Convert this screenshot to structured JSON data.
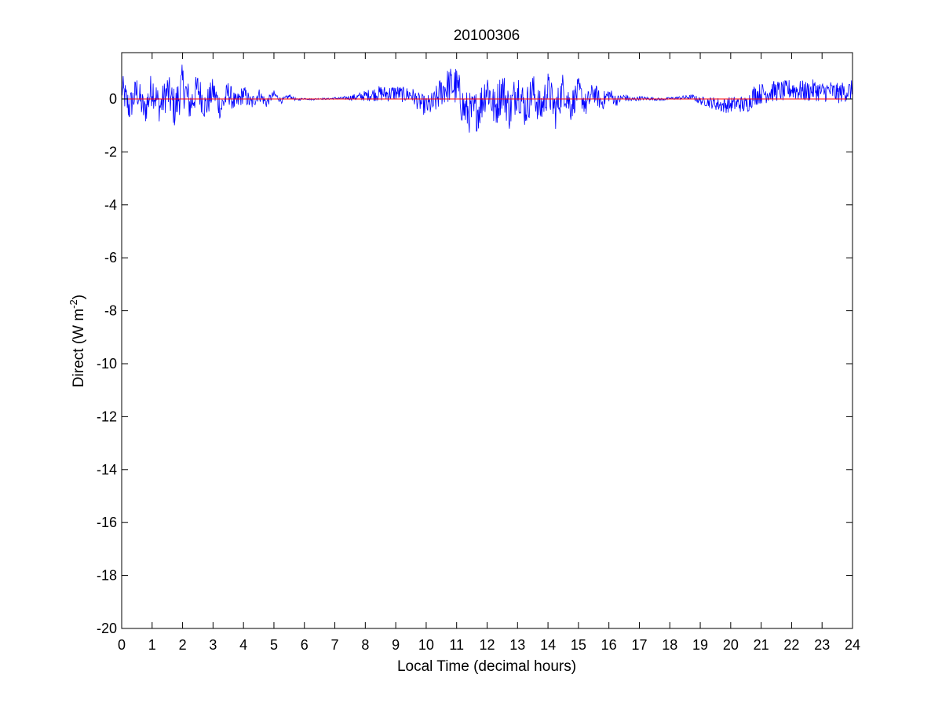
{
  "chart_data": {
    "type": "line",
    "title": "20100306",
    "xlabel": "Local Time (decimal hours)",
    "ylabel": "Direct (W m",
    "ylabel_superscript": "-2",
    "ylabel_suffix": ")",
    "xlim": [
      0,
      24
    ],
    "ylim": [
      -20,
      1.75
    ],
    "xticks": [
      0,
      1,
      2,
      3,
      4,
      5,
      6,
      7,
      8,
      9,
      10,
      11,
      12,
      13,
      14,
      15,
      16,
      17,
      18,
      19,
      20,
      21,
      22,
      23,
      24
    ],
    "yticks": [
      0,
      -2,
      -4,
      -6,
      -8,
      -10,
      -12,
      -14,
      -16,
      -18,
      -20
    ],
    "grid": false,
    "legend": "none",
    "series": [
      {
        "color": "#0000ff",
        "x": [
          0,
          0.25,
          0.5,
          0.75,
          1,
          1.25,
          1.5,
          1.75,
          2,
          2.25,
          2.5,
          2.75,
          3,
          3.25,
          3.5,
          3.75,
          4,
          4.25,
          4.5,
          4.75,
          5,
          5.25,
          5.5,
          5.75,
          6,
          6.25,
          6.5,
          6.75,
          7,
          7.25,
          7.5,
          7.75,
          8,
          8.25,
          8.5,
          8.75,
          9,
          9.25,
          9.5,
          9.75,
          10,
          10.25,
          10.5,
          10.75,
          11,
          11.25,
          11.5,
          11.75,
          12,
          12.25,
          12.5,
          12.75,
          13,
          13.25,
          13.5,
          13.75,
          14,
          14.25,
          14.5,
          14.75,
          15,
          15.25,
          15.5,
          15.75,
          16,
          16.25,
          16.5,
          16.75,
          17,
          17.25,
          17.5,
          17.75,
          18,
          18.25,
          18.5,
          18.75,
          19,
          19.25,
          19.5,
          19.75,
          20,
          20.25,
          20.5,
          20.75,
          21,
          21.25,
          21.5,
          21.75,
          22,
          22.25,
          22.5,
          22.75,
          23,
          23.25,
          23.5,
          23.75,
          24
        ],
        "y": [
          1.2,
          -1.0,
          0.9,
          -1.4,
          1.3,
          -0.9,
          0.8,
          -1.1,
          1.6,
          -0.7,
          1.2,
          -0.9,
          0.9,
          -1.0,
          0.7,
          -0.6,
          0.6,
          -0.5,
          0.5,
          -0.4,
          0.5,
          -0.2,
          0.3,
          -0.1,
          0.05,
          -0.05,
          0.04,
          0.0,
          0.08,
          0.05,
          0.15,
          0.2,
          0.35,
          0.5,
          0.6,
          0.55,
          0.7,
          0.45,
          0.5,
          -0.3,
          -0.8,
          -0.5,
          0.9,
          1.5,
          1.3,
          -1.2,
          -1.6,
          -1.0,
          1.4,
          -1.2,
          1.1,
          -1.3,
          1.3,
          -1.1,
          0.9,
          -1.2,
          1.0,
          -1.3,
          1.2,
          -0.8,
          0.9,
          -0.7,
          0.8,
          -0.4,
          0.5,
          -0.2,
          0.2,
          -0.1,
          0.1,
          0.05,
          0.0,
          -0.05,
          0.05,
          0.1,
          0.15,
          0.2,
          -0.2,
          -0.3,
          -0.5,
          -0.7,
          -0.6,
          -0.5,
          -0.7,
          0.4,
          0.6,
          0.7,
          0.9,
          0.8,
          1.1,
          0.9,
          0.8,
          1.0,
          0.7,
          0.9,
          0.6,
          0.8,
          0.9
        ],
        "noise": [
          0.6,
          0.6,
          0.6,
          0.6,
          0.7,
          0.6,
          0.7,
          0.8,
          0.8,
          0.7,
          0.6,
          0.6,
          0.5,
          0.5,
          0.45,
          0.4,
          0.35,
          0.3,
          0.25,
          0.2,
          0.15,
          0.1,
          0.08,
          0.05,
          0.03,
          0.03,
          0.03,
          0.03,
          0.04,
          0.06,
          0.1,
          0.15,
          0.2,
          0.25,
          0.3,
          0.3,
          0.3,
          0.3,
          0.3,
          0.35,
          0.4,
          0.5,
          0.6,
          0.7,
          0.8,
          0.8,
          0.8,
          0.8,
          0.8,
          0.8,
          0.8,
          0.8,
          0.8,
          0.75,
          0.7,
          0.7,
          0.7,
          0.7,
          0.65,
          0.6,
          0.5,
          0.45,
          0.4,
          0.35,
          0.3,
          0.2,
          0.15,
          0.1,
          0.08,
          0.06,
          0.05,
          0.05,
          0.05,
          0.06,
          0.08,
          0.1,
          0.15,
          0.2,
          0.25,
          0.3,
          0.3,
          0.3,
          0.35,
          0.4,
          0.4,
          0.4,
          0.4,
          0.4,
          0.4,
          0.4,
          0.4,
          0.4,
          0.4,
          0.4,
          0.4,
          0.4,
          0.4
        ]
      },
      {
        "color": "#ff0000",
        "x": [
          0,
          24
        ],
        "y": [
          0,
          0
        ]
      }
    ]
  }
}
